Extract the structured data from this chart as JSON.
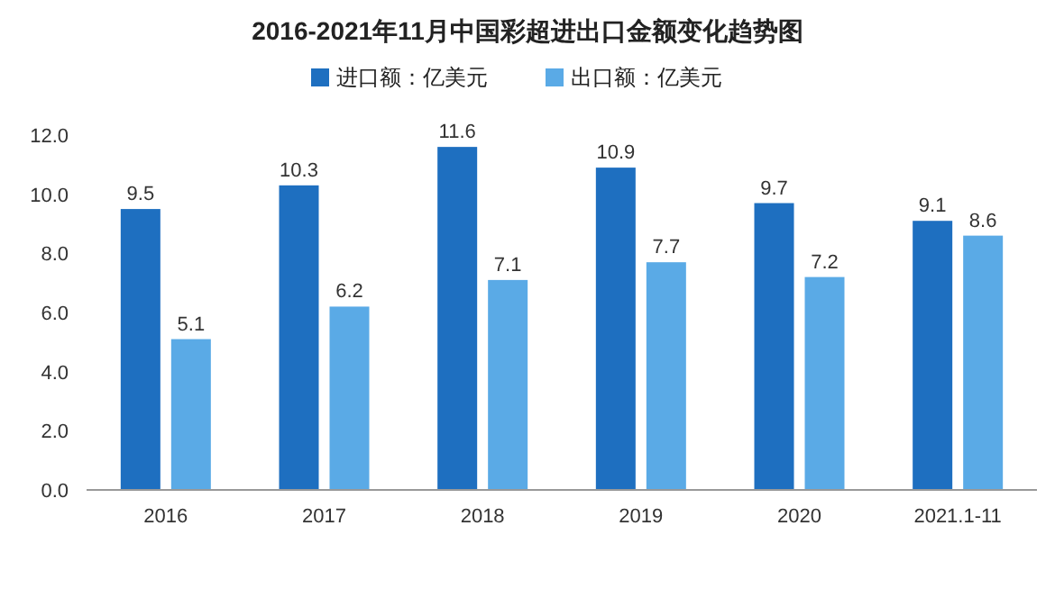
{
  "chart_data": {
    "type": "bar",
    "title": "2016-2021年11月中国彩超进出口金额变化趋势图",
    "categories": [
      "2016",
      "2017",
      "2018",
      "2019",
      "2020",
      "2021.1-11"
    ],
    "series": [
      {
        "name": "进口额：亿美元",
        "color": "#1e6fc0",
        "values": [
          9.5,
          10.3,
          11.6,
          10.9,
          9.7,
          9.1
        ]
      },
      {
        "name": "出口额：亿美元",
        "color": "#5aaae6",
        "values": [
          5.1,
          6.2,
          7.1,
          7.7,
          7.2,
          8.6
        ]
      }
    ],
    "ylim": [
      0,
      12
    ],
    "yticks": [
      {
        "value": 0,
        "label": "0.0"
      },
      {
        "value": 2,
        "label": "2.0"
      },
      {
        "value": 4,
        "label": "4.0"
      },
      {
        "value": 6,
        "label": "6.0"
      },
      {
        "value": 8,
        "label": "8.0"
      },
      {
        "value": 10,
        "label": "10.0"
      },
      {
        "value": 12,
        "label": "12.0"
      }
    ],
    "data_labels": true,
    "legend": "top",
    "grid": false
  }
}
